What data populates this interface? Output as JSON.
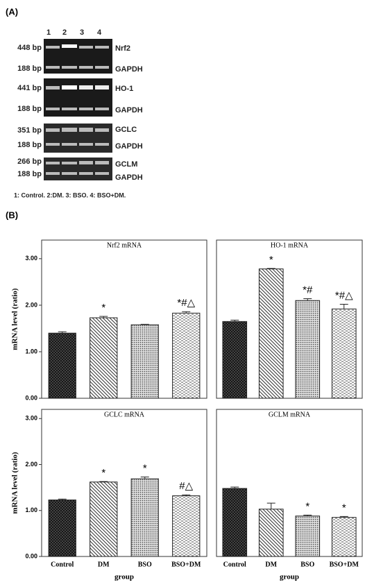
{
  "panel_a": {
    "label": "(A)",
    "lanes": [
      "1",
      "2",
      "3",
      "4"
    ],
    "blots": [
      {
        "sizes": [
          "448 bp",
          "188 bp"
        ],
        "genes": [
          "Nrf2",
          "GAPDH"
        ]
      },
      {
        "sizes": [
          "441 bp",
          "188 bp"
        ],
        "genes": [
          "HO-1",
          "GAPDH"
        ]
      },
      {
        "sizes": [
          "351 bp",
          "188 bp"
        ],
        "genes": [
          "GCLC",
          "GAPDH"
        ]
      },
      {
        "sizes": [
          "266 bp",
          "188 bp"
        ],
        "genes": [
          "GCLM",
          "GAPDH"
        ]
      }
    ],
    "legend": "1: Control.  2:DM.  3: BSO.   4: BSO+DM."
  },
  "panel_b": {
    "label": "(B)"
  },
  "chart_data": [
    {
      "type": "bar",
      "title": "Nrf2 mRNA",
      "y_label": "mRNA level (ratio)",
      "values": [
        1.4,
        1.73,
        1.58,
        1.83
      ],
      "errors": [
        0.03,
        0.03,
        0.01,
        0.03
      ],
      "annotations": [
        null,
        "*",
        null,
        "*#△"
      ],
      "ylim": [
        0,
        3.4
      ],
      "yticks": [
        {
          "value": 0,
          "label": "0.00"
        },
        {
          "value": 1,
          "label": "1.00"
        },
        {
          "value": 2,
          "label": "2.00"
        },
        {
          "value": 3,
          "label": "3.00"
        }
      ]
    },
    {
      "type": "bar",
      "title": "HO-1  mRNA",
      "values": [
        1.65,
        2.78,
        2.1,
        1.92
      ],
      "errors": [
        0.03,
        0.01,
        0.04,
        0.1
      ],
      "annotations": [
        null,
        "*",
        "*#",
        "*#△"
      ],
      "ylim": [
        0,
        3.4
      ]
    },
    {
      "type": "bar",
      "title": "GCLC mRNA",
      "y_label": "mRNA level (ratio)",
      "x_label": "group",
      "categories": [
        "Control",
        "DM",
        "BSO",
        "BSO+DM"
      ],
      "values": [
        1.23,
        1.62,
        1.69,
        1.32
      ],
      "errors": [
        0.02,
        0.01,
        0.04,
        0.02
      ],
      "annotations": [
        null,
        "*",
        "*",
        "#△"
      ],
      "ylim": [
        0,
        3.2
      ],
      "yticks": [
        {
          "value": 0,
          "label": "0.00"
        },
        {
          "value": 1,
          "label": "1.00"
        },
        {
          "value": 2,
          "label": "2.00"
        },
        {
          "value": 3,
          "label": "3.00"
        }
      ]
    },
    {
      "type": "bar",
      "title": "GCLM mRNA",
      "x_label": "group",
      "categories": [
        "Control",
        "DM",
        "BSO",
        "BSO+DM"
      ],
      "values": [
        1.48,
        1.03,
        0.88,
        0.85
      ],
      "errors": [
        0.03,
        0.13,
        0.02,
        0.02
      ],
      "annotations": [
        null,
        null,
        "*",
        "*"
      ],
      "ylim": [
        0,
        3.2
      ]
    }
  ]
}
